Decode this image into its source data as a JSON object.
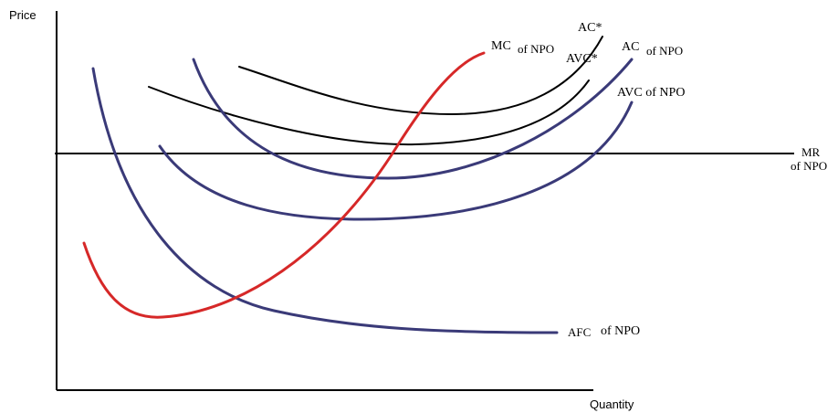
{
  "axes": {
    "y_label": "Price",
    "x_label": "Quantity"
  },
  "labels": {
    "mr": "MR",
    "mr_sub": "of NPO",
    "ac_star": "AC*",
    "avc_star": "AVC*",
    "mc_main": "MC",
    "mc_sub": "of NPO",
    "ac_main": "AC",
    "ac_sub": "of NPO",
    "avc": "AVC of NPO",
    "afc_main": "AFC",
    "afc_sub": "of NPO"
  },
  "colors": {
    "mc": "#d62828",
    "npo_curves": "#3a3a78",
    "star_curves": "#000000",
    "axes": "#000000"
  }
}
